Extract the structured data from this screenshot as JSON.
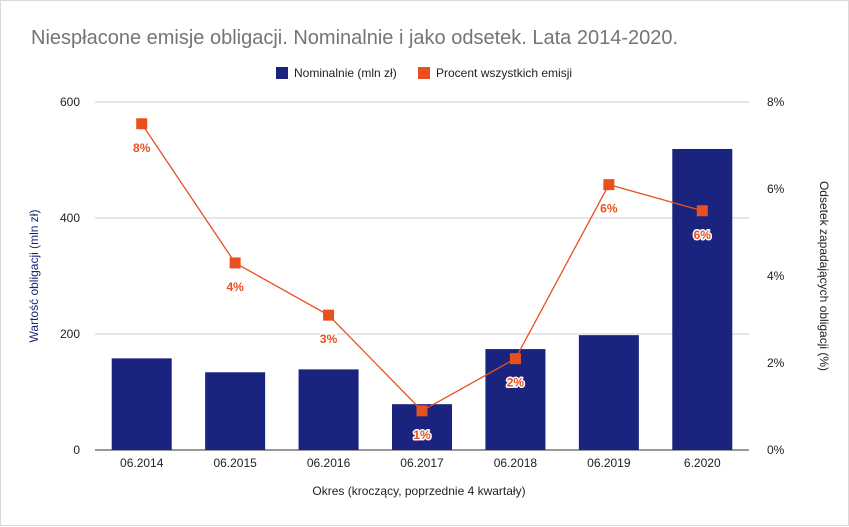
{
  "chart_data": {
    "type": "bar",
    "title": "Niespłacone emisje obligacji. Nominalnie i jako odsetek. Lata 2014-2020.",
    "categories": [
      "06.2014",
      "06.2015",
      "06.2016",
      "06.2017",
      "06.2018",
      "06.2019",
      "6.2020"
    ],
    "series": [
      {
        "name": "Nominalnie (mln zł)",
        "type": "bar",
        "axis": "left",
        "color": "#1a237e",
        "values": [
          158,
          134,
          139,
          79,
          174,
          198,
          519
        ]
      },
      {
        "name": "Procent wszystkich emisji",
        "type": "line",
        "axis": "right",
        "color": "#e8501f",
        "values": [
          7.5,
          4.3,
          3.1,
          0.9,
          2.1,
          6.1,
          5.5
        ],
        "data_labels": [
          "8%",
          "4%",
          "3%",
          "1%",
          "2%",
          "6%",
          "6%"
        ]
      }
    ],
    "xlabel": "Okres (kroczący, poprzednie 4 kwartały)",
    "ylabel": "Wartość obligacji (mln zł)",
    "ylabel_right": "Odsetek zapadających obligacji (%)",
    "ylim": [
      0,
      600
    ],
    "ylim_right": [
      0,
      8
    ],
    "yticks": [
      "0",
      "200",
      "400",
      "600"
    ],
    "yticks_right": [
      "0%",
      "2%",
      "4%",
      "6%",
      "8%"
    ],
    "grid": true,
    "legend_position": "top-center"
  }
}
